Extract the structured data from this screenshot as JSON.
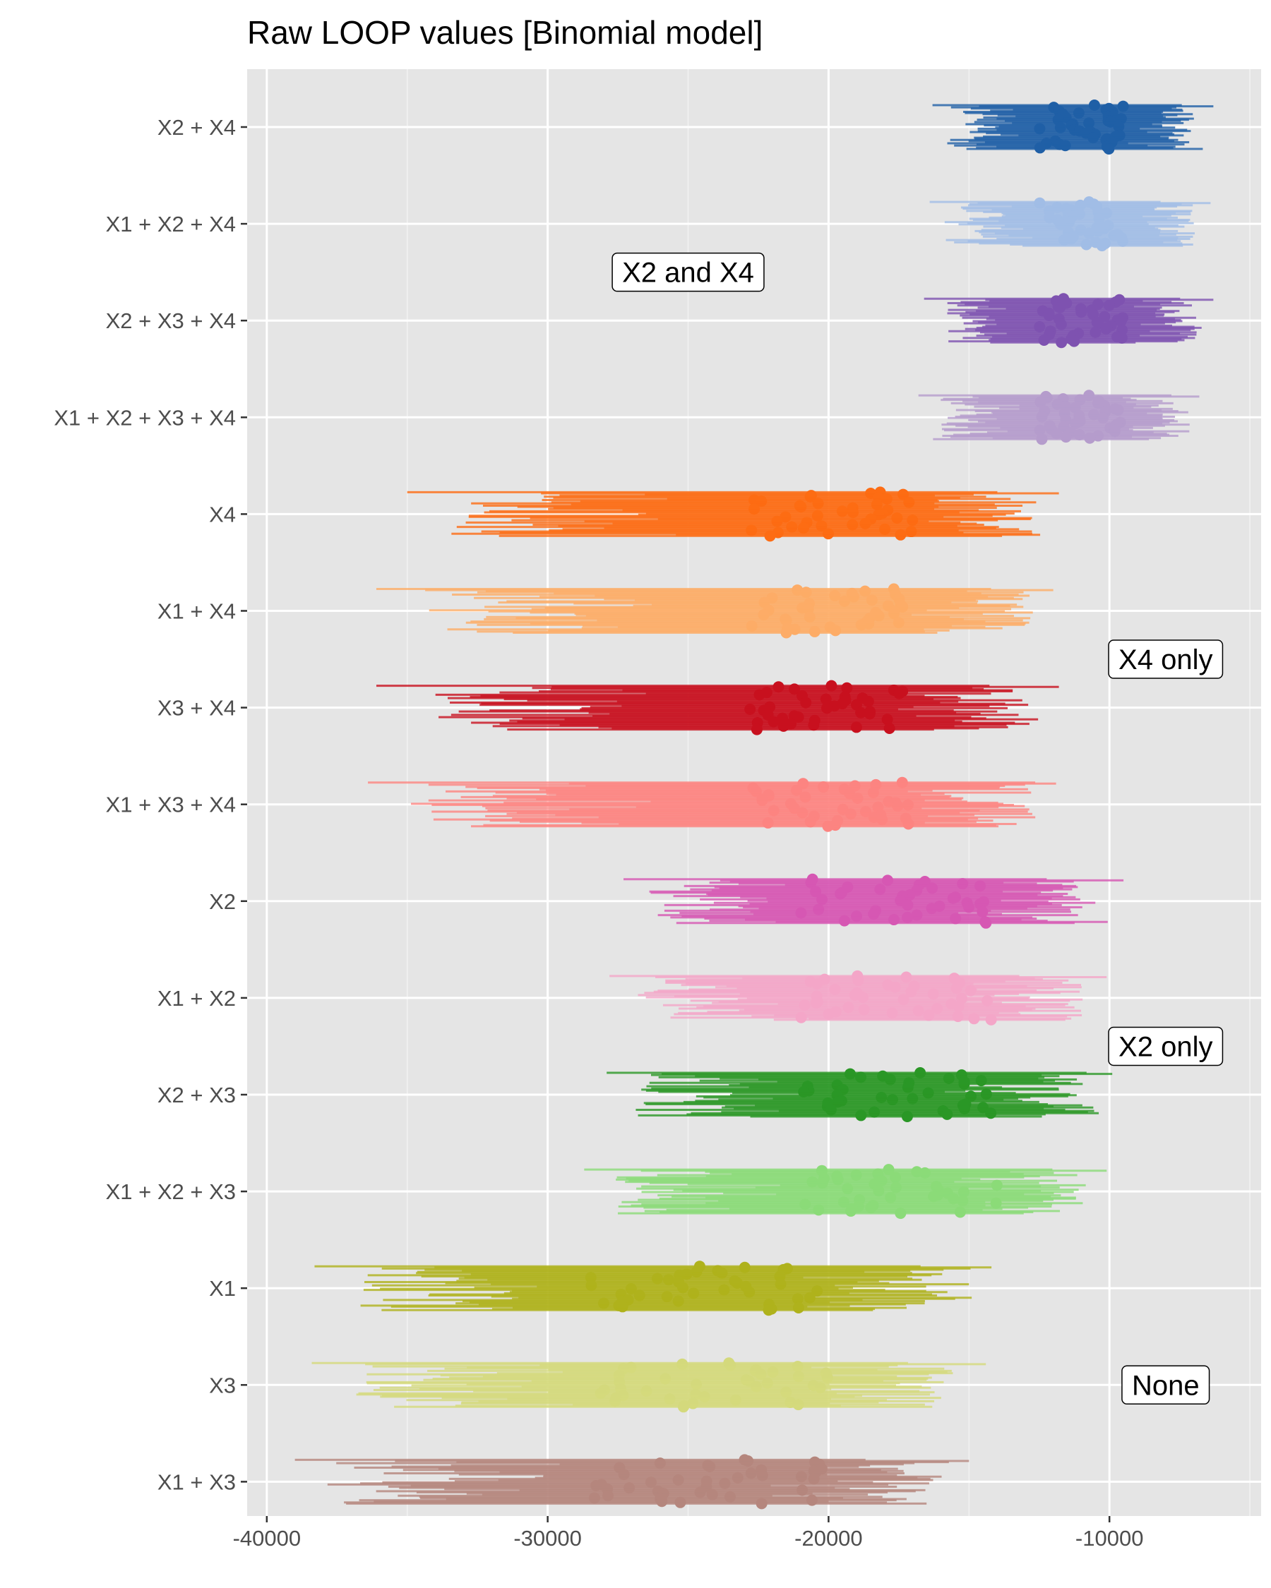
{
  "chart_data": {
    "type": "interval",
    "title": "Raw LOOP values [Binomial model]",
    "xlabel": "",
    "ylabel": "",
    "xlim": [
      -40700,
      -4600
    ],
    "x_ticks": [
      -40000,
      -30000,
      -20000,
      -10000
    ],
    "x_tick_labels": [
      "-40000",
      "-30000",
      "-20000",
      "-10000"
    ],
    "grid": true,
    "categories": [
      "X2 + X4",
      "X1 + X2 + X4",
      "X2 + X3 + X4",
      "X1 + X2 + X3 + X4",
      "X4",
      "X1 + X4",
      "X3 + X4",
      "X1 + X3 + X4",
      "X2",
      "X1 + X2",
      "X2 + X3",
      "X1 + X2 + X3",
      "X1",
      "X3",
      "X1 + X3"
    ],
    "series": [
      {
        "category": "X2 + X4",
        "color": "#1f5fa6",
        "center_min": -12500,
        "center_max": -9500,
        "low_min": -16300,
        "high_max": -6300
      },
      {
        "category": "X1 + X2 + X4",
        "color": "#a1bde6",
        "center_min": -12500,
        "center_max": -9500,
        "low_min": -16400,
        "high_max": -6400
      },
      {
        "category": "X2 + X3 + X4",
        "color": "#7e52b0",
        "center_min": -12500,
        "center_max": -9500,
        "low_min": -16600,
        "high_max": -6300
      },
      {
        "category": "X1 + X2 + X3 + X4",
        "color": "#b59ccc",
        "center_min": -12500,
        "center_max": -9500,
        "low_min": -16800,
        "high_max": -6800
      },
      {
        "category": "X4",
        "color": "#fd6c13",
        "center_min": -22800,
        "center_max": -17000,
        "low_min": -35000,
        "high_max": -11800
      },
      {
        "category": "X1 + X4",
        "color": "#fdac67",
        "center_min": -22800,
        "center_max": -17000,
        "low_min": -36100,
        "high_max": -12000
      },
      {
        "category": "X3 + X4",
        "color": "#c8101e",
        "center_min": -22800,
        "center_max": -17000,
        "low_min": -36100,
        "high_max": -11800
      },
      {
        "category": "X1 + X3 + X4",
        "color": "#fc8481",
        "center_min": -22800,
        "center_max": -17000,
        "low_min": -36400,
        "high_max": -11900
      },
      {
        "category": "X2",
        "color": "#d657b3",
        "center_min": -21000,
        "center_max": -14000,
        "low_min": -27300,
        "high_max": -9500
      },
      {
        "category": "X1 + X2",
        "color": "#f4a6c8",
        "center_min": -21000,
        "center_max": -14000,
        "low_min": -27800,
        "high_max": -10100
      },
      {
        "category": "X2 + X3",
        "color": "#2a9726",
        "center_min": -21000,
        "center_max": -14000,
        "low_min": -27900,
        "high_max": -9900
      },
      {
        "category": "X1 + X2 + X3",
        "color": "#8bdb78",
        "center_min": -21000,
        "center_max": -14000,
        "low_min": -28700,
        "high_max": -10100
      },
      {
        "category": "X1",
        "color": "#afb21c",
        "center_min": -28500,
        "center_max": -20000,
        "low_min": -38300,
        "high_max": -14200
      },
      {
        "category": "X3",
        "color": "#d4d97c",
        "center_min": -28500,
        "center_max": -20000,
        "low_min": -38400,
        "high_max": -14400
      },
      {
        "category": "X1 + X3",
        "color": "#b5867d",
        "center_min": -28500,
        "center_max": -20000,
        "low_min": -39000,
        "high_max": -15000
      }
    ],
    "annotations": [
      {
        "text": "X2 and X4",
        "x": -25000,
        "category": "X1 + X2 + X4",
        "offset": 0.5
      },
      {
        "text": "X4 only",
        "x": -8000,
        "category": "X1 + X4",
        "offset": 0.5
      },
      {
        "text": "X2 only",
        "x": -8000,
        "category": "X1 + X2",
        "offset": 0.5
      },
      {
        "text": "None",
        "x": -8000,
        "category": "X1",
        "offset": 1
      }
    ]
  }
}
